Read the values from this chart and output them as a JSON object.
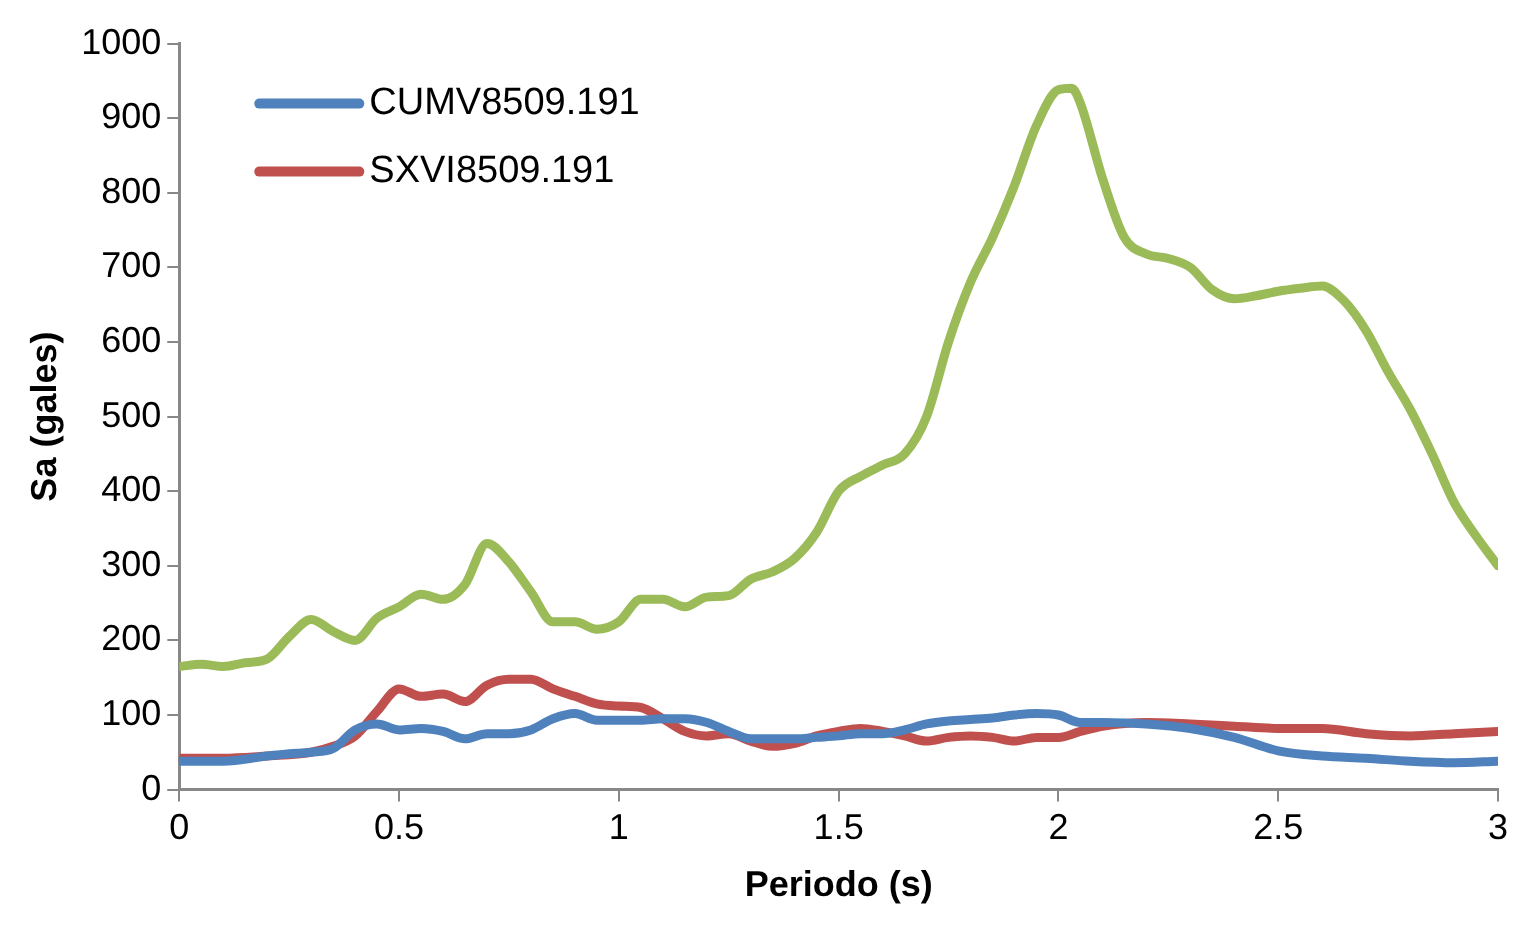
{
  "chart_data": {
    "type": "line",
    "xlabel": "Periodo (s)",
    "ylabel": "Sa (gales)",
    "xlim": [
      0,
      3
    ],
    "xticks": [
      0,
      0.5,
      1,
      1.5,
      2,
      2.5,
      3
    ],
    "ylim": [
      0,
      1000
    ],
    "yticks": [
      0,
      100,
      200,
      300,
      400,
      500,
      600,
      700,
      800,
      900,
      1000
    ],
    "grid": false,
    "legend": "top left",
    "marker": "none",
    "line_style": "solid",
    "series": [
      {
        "name": "CUMV8509.191",
        "color": "#4f81bd",
        "x": [
          0,
          0.1,
          0.2,
          0.25,
          0.3,
          0.35,
          0.4,
          0.45,
          0.5,
          0.55,
          0.6,
          0.65,
          0.7,
          0.75,
          0.8,
          0.85,
          0.9,
          0.95,
          1.0,
          1.05,
          1.1,
          1.15,
          1.2,
          1.25,
          1.3,
          1.35,
          1.4,
          1.45,
          1.5,
          1.55,
          1.6,
          1.65,
          1.7,
          1.75,
          1.8,
          1.85,
          1.9,
          1.95,
          2.0,
          2.05,
          2.1,
          2.2,
          2.3,
          2.4,
          2.5,
          2.6,
          2.7,
          2.8,
          2.9,
          3.0
        ],
        "values": [
          38,
          38,
          45,
          48,
          50,
          55,
          80,
          88,
          80,
          82,
          78,
          68,
          75,
          75,
          80,
          95,
          102,
          93,
          93,
          93,
          95,
          95,
          90,
          78,
          68,
          68,
          68,
          70,
          72,
          75,
          75,
          80,
          88,
          92,
          94,
          96,
          100,
          102,
          100,
          90,
          90,
          88,
          82,
          70,
          52,
          45,
          42,
          38,
          36,
          38
        ]
      },
      {
        "name": "SXVI8509.191",
        "color": "#c0504d",
        "x": [
          0,
          0.1,
          0.2,
          0.3,
          0.35,
          0.4,
          0.45,
          0.5,
          0.55,
          0.6,
          0.65,
          0.7,
          0.75,
          0.8,
          0.85,
          0.9,
          0.95,
          1.0,
          1.05,
          1.1,
          1.15,
          1.2,
          1.25,
          1.3,
          1.35,
          1.4,
          1.45,
          1.5,
          1.55,
          1.6,
          1.65,
          1.7,
          1.75,
          1.8,
          1.85,
          1.9,
          1.95,
          2.0,
          2.05,
          2.1,
          2.2,
          2.3,
          2.4,
          2.5,
          2.6,
          2.7,
          2.8,
          2.9,
          3.0
        ],
        "values": [
          42,
          42,
          45,
          50,
          58,
          72,
          105,
          135,
          125,
          128,
          118,
          140,
          148,
          148,
          135,
          125,
          115,
          112,
          110,
          95,
          78,
          72,
          75,
          65,
          58,
          62,
          72,
          78,
          82,
          78,
          72,
          65,
          70,
          72,
          70,
          65,
          70,
          70,
          78,
          85,
          90,
          88,
          85,
          82,
          82,
          75,
          72,
          75,
          78
        ]
      },
      {
        "color": "#9bbb59",
        "x": [
          0,
          0.05,
          0.1,
          0.15,
          0.2,
          0.25,
          0.3,
          0.35,
          0.4,
          0.45,
          0.5,
          0.55,
          0.6,
          0.65,
          0.7,
          0.75,
          0.8,
          0.85,
          0.9,
          0.95,
          1.0,
          1.05,
          1.1,
          1.15,
          1.2,
          1.25,
          1.3,
          1.35,
          1.4,
          1.45,
          1.5,
          1.55,
          1.6,
          1.65,
          1.7,
          1.75,
          1.8,
          1.85,
          1.9,
          1.95,
          2.0,
          2.03,
          2.05,
          2.1,
          2.15,
          2.2,
          2.25,
          2.3,
          2.35,
          2.4,
          2.45,
          2.5,
          2.55,
          2.6,
          2.65,
          2.7,
          2.75,
          2.8,
          2.85,
          2.9,
          2.95,
          3.0
        ],
        "values": [
          165,
          168,
          165,
          170,
          175,
          205,
          228,
          212,
          200,
          230,
          245,
          262,
          255,
          275,
          330,
          305,
          265,
          225,
          225,
          215,
          225,
          255,
          255,
          245,
          258,
          260,
          282,
          292,
          310,
          345,
          400,
          420,
          435,
          450,
          500,
          600,
          680,
          740,
          810,
          890,
          938,
          940,
          920,
          820,
          740,
          718,
          712,
          700,
          670,
          658,
          662,
          668,
          672,
          675,
          655,
          615,
          560,
          510,
          450,
          385,
          340,
          300
        ]
      }
    ]
  }
}
